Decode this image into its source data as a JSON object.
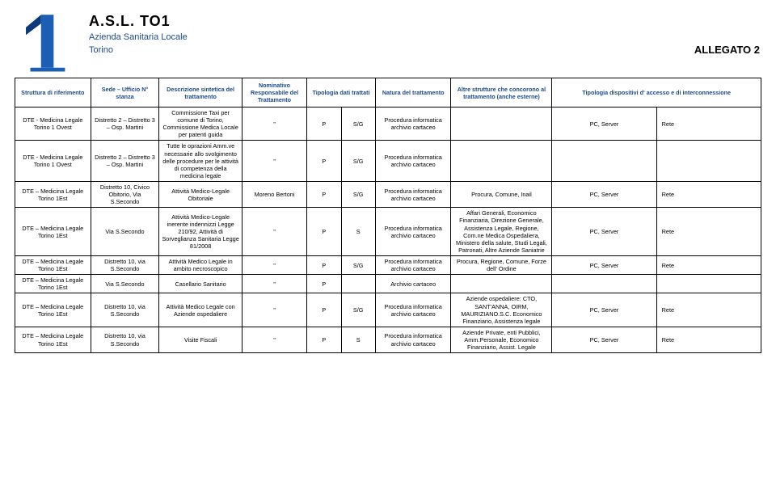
{
  "brand": {
    "title": "A.S.L. TO1",
    "sub1": "Azienda Sanitaria Locale",
    "sub2": "Torino"
  },
  "allegato": "ALLEGATO 2",
  "colors": {
    "header_text": "#1a4a8a",
    "body_text": "#000000",
    "border": "#000000",
    "logo_fill": "#1a5fb4",
    "logo_left": "#0a3a7a",
    "background": "#ffffff"
  },
  "columns": [
    "Struttura di riferimento",
    "Sede – Ufficio\nN° stanza",
    "Descrizione sintetica del trattamento",
    "Nominativo Responsabile del Trattamento",
    "Tipologia dati trattati",
    "Natura del trattamento",
    "Altre strutture che concorono al trattamento (anche esterne)",
    "Tipologia dispositivi d' accesso e di interconnessione"
  ],
  "subcolumns_tipologia": [
    "",
    ""
  ],
  "rows": [
    {
      "struttura": "DTE - Medicina Legale Torino 1 Ovest",
      "sede": "Distretto 2 – Distretto 3 – Osp. Martini",
      "descr": "Commissione Taxi per comune di Torino, Commissione Medica Locale per patenti guida",
      "resp": "\"",
      "tipoA": "P",
      "tipoB": "S/G",
      "natura": "Procedura informatica archivio cartaceo",
      "altre": "",
      "disp_a": "PC, Server",
      "disp_b": "Rete"
    },
    {
      "struttura": "DTE - Medicina Legale Torino 1 Ovest",
      "sede": "Distretto 2 – Distretto 3 – Osp. Martini",
      "descr": "Tutte le oprazioni Amm.ve necessarie allo svolgimento delle procedure per le attività di competenza della medicina legale",
      "resp": "\"",
      "tipoA": "P",
      "tipoB": "S/G",
      "natura": "Procedura informatica archivio cartaceo",
      "altre": "",
      "disp_a": "",
      "disp_b": ""
    },
    {
      "struttura": "DTE – Medicina Legale Torino 1Est",
      "sede": "Distretto 10, Civico Obitorio, Via S.Secondo",
      "descr": "Attività Medico-Legale Obitoriale",
      "resp": "Moreno Bertoni",
      "tipoA": "P",
      "tipoB": "S/G",
      "natura": "Procedura informatica archivio cartaceo",
      "altre": "Procura, Comune, Inail",
      "disp_a": "PC, Server",
      "disp_b": "Rete"
    },
    {
      "struttura": "DTE – Medicina Legale Torino 1Est",
      "sede": "Via S.Secondo",
      "descr": "Attività Medico-Legale inerente indennizzi Legge 210/92, Attività di Sorveglianza Sanitaria Legge 81/2008",
      "resp": "\"",
      "tipoA": "P",
      "tipoB": "S",
      "natura": "Procedura informatica archivio cartaceo",
      "altre": "Affari Generali, Economico Finanziaria, Direzione Generale, Assistenza Legale, Regione, Com.ne Medica Ospedaliera, Ministero della salute, Studi Legali, Patronati, Altre Aziende Saniatrie",
      "disp_a": "PC, Server",
      "disp_b": "Rete"
    },
    {
      "struttura": "DTE – Medicina Legale Torino 1Est",
      "sede": "Distretto 10, via S.Secondo",
      "descr": "Attività Medico Legale in ambito necroscopico",
      "resp": "\"",
      "tipoA": "P",
      "tipoB": "S/G",
      "natura": "Procedura informatica archivio cartaceo",
      "altre": "Procura, Regione, Comune, Forze dell' Ordine",
      "disp_a": "PC, Server",
      "disp_b": "Rete"
    },
    {
      "struttura": "DTE – Medicina Legale Torino 1Est",
      "sede": "Via S.Secondo",
      "descr": "Casellario Sanitario",
      "resp": "\"",
      "tipoA": "P",
      "tipoB": "",
      "natura": "Archivio cartaceo",
      "altre": "",
      "disp_a": "",
      "disp_b": ""
    },
    {
      "struttura": "DTE – Medicina Legale Torino 1Est",
      "sede": "Distretto 10, via S.Secondo",
      "descr": "Attività Medico Legale con Aziende ospedaliere",
      "resp": "\"",
      "tipoA": "P",
      "tipoB": "S/G",
      "natura": "Procedura informatica archivio cartaceo",
      "altre": "Aziende ospedaliere: CTO, SANT'ANNA, OIRM, MAURIZIANO.S.C. Economico Finanziario, Assistenza legale",
      "disp_a": "PC, Server",
      "disp_b": "Rete"
    },
    {
      "struttura": "DTE – Medicina Legale Torino 1Est",
      "sede": "Distretto 10, via S.Secondo",
      "descr": "Visite Fiscali",
      "resp": "\"",
      "tipoA": "P",
      "tipoB": "S",
      "natura": "Procedura informatica archivio cartaceo",
      "altre": "Aziende Private, enti Pubblici, Amm.Personale, Economico Finanziario, Assist. Legale",
      "disp_a": "PC, Server",
      "disp_b": "Rete"
    }
  ]
}
